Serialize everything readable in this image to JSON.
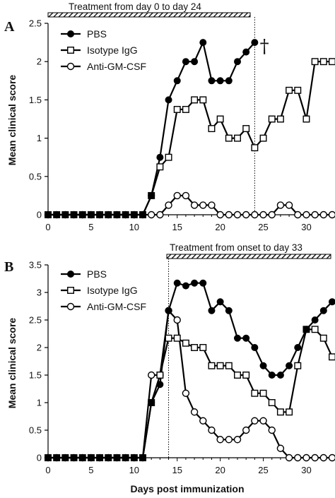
{
  "xlabel": "Days post immunization",
  "chart_data": [
    {
      "type": "line",
      "panel": "A",
      "treatment_label": "Treatment from day 0 to day 24",
      "treatment_range": [
        0,
        24
      ],
      "ylabel": "Mean clinical score",
      "xlim": [
        0,
        33
      ],
      "ylim": [
        0,
        2.5
      ],
      "xticks": [
        0,
        5,
        10,
        15,
        20,
        25,
        30
      ],
      "yticks": [
        0,
        0.5,
        1,
        1.5,
        2,
        2.5
      ],
      "ytick_labels": [
        "0",
        "0.5",
        "1",
        "1.5",
        "2",
        "2.5"
      ],
      "legend_position": "top-left",
      "death_marker": "†",
      "death_marker_at": [
        24.8,
        2.25
      ],
      "series": [
        {
          "name": "PBS",
          "marker": "filled-circle",
          "x": [
            0,
            1,
            2,
            3,
            4,
            5,
            6,
            7,
            8,
            9,
            10,
            11,
            12,
            13,
            14,
            15,
            16,
            17,
            18,
            19,
            20,
            21,
            22,
            23,
            24
          ],
          "y": [
            0,
            0,
            0,
            0,
            0,
            0,
            0,
            0,
            0,
            0,
            0,
            0,
            0.25,
            0.75,
            1.5,
            1.75,
            2,
            2,
            2.25,
            1.75,
            1.75,
            1.75,
            2,
            2.125,
            2.25
          ]
        },
        {
          "name": "Isotype IgG",
          "marker": "open-square",
          "x": [
            0,
            1,
            2,
            3,
            4,
            5,
            6,
            7,
            8,
            9,
            10,
            11,
            12,
            13,
            14,
            15,
            16,
            17,
            18,
            19,
            20,
            21,
            22,
            23,
            24,
            25,
            26,
            27,
            28,
            29,
            30,
            31,
            32,
            33
          ],
          "y": [
            0,
            0,
            0,
            0,
            0,
            0,
            0,
            0,
            0,
            0,
            0,
            0,
            0.25,
            0.625,
            0.75,
            1.375,
            1.375,
            1.5,
            1.5,
            1.125,
            1.25,
            1,
            1,
            1.125,
            0.875,
            1,
            1.25,
            1.25,
            1.625,
            1.625,
            1.25,
            2,
            2,
            2
          ]
        },
        {
          "name": "Anti-GM-CSF",
          "marker": "open-circle",
          "x": [
            0,
            1,
            2,
            3,
            4,
            5,
            6,
            7,
            8,
            9,
            10,
            11,
            12,
            13,
            14,
            15,
            16,
            17,
            18,
            19,
            20,
            21,
            22,
            23,
            24,
            25,
            26,
            27,
            28,
            29,
            30,
            31,
            32,
            33
          ],
          "y": [
            0,
            0,
            0,
            0,
            0,
            0,
            0,
            0,
            0,
            0,
            0,
            0,
            0,
            0,
            0.125,
            0.25,
            0.25,
            0.125,
            0.125,
            0.125,
            0,
            0,
            0,
            0,
            0,
            0,
            0,
            0.125,
            0.125,
            0,
            0,
            0,
            0,
            0
          ]
        }
      ]
    },
    {
      "type": "line",
      "panel": "B",
      "treatment_label": "Treatment from onset to day 33",
      "treatment_range": [
        14,
        33
      ],
      "ylabel": "Mean clinical score",
      "xlim": [
        0,
        33
      ],
      "ylim": [
        0,
        3.5
      ],
      "xticks": [
        0,
        5,
        10,
        15,
        20,
        25,
        30
      ],
      "yticks": [
        0,
        0.5,
        1,
        1.5,
        2,
        2.5,
        3,
        3.5
      ],
      "ytick_labels": [
        "0",
        "0.5",
        "1",
        "1.5",
        "2",
        "2.5",
        "3",
        "3.5"
      ],
      "legend_position": "top-left",
      "series": [
        {
          "name": "PBS",
          "marker": "filled-circle",
          "x": [
            0,
            1,
            2,
            3,
            4,
            5,
            6,
            7,
            8,
            9,
            10,
            11,
            12,
            13,
            14,
            15,
            16,
            17,
            18,
            19,
            20,
            21,
            22,
            23,
            24,
            25,
            26,
            27,
            28,
            29,
            30,
            31,
            32,
            33
          ],
          "y": [
            0,
            0,
            0,
            0,
            0,
            0,
            0,
            0,
            0,
            0,
            0,
            0,
            1,
            1.33,
            2.67,
            3.17,
            3.12,
            3.17,
            3.17,
            2.67,
            2.83,
            2.67,
            2.17,
            2.17,
            2,
            1.67,
            1.5,
            1.5,
            1.67,
            2,
            2.33,
            2.5,
            2.67,
            2.83
          ]
        },
        {
          "name": "Isotype IgG",
          "marker": "open-square",
          "x": [
            0,
            1,
            2,
            3,
            4,
            5,
            6,
            7,
            8,
            9,
            10,
            11,
            12,
            13,
            14,
            15,
            16,
            17,
            18,
            19,
            20,
            21,
            22,
            23,
            24,
            25,
            26,
            27,
            28,
            29,
            30,
            31,
            32,
            33
          ],
          "y": [
            0,
            0,
            0,
            0,
            0,
            0,
            0,
            0,
            0,
            0,
            0,
            0,
            1,
            1.5,
            2.17,
            2.17,
            2.08,
            2,
            2,
            1.67,
            1.67,
            1.67,
            1.5,
            1.5,
            1.17,
            1.17,
            1,
            0.83,
            0.83,
            1.67,
            2.33,
            2.33,
            2.17,
            1.83
          ]
        },
        {
          "name": "Anti-GM-CSF",
          "marker": "open-circle",
          "x": [
            0,
            1,
            2,
            3,
            4,
            5,
            6,
            7,
            8,
            9,
            10,
            11,
            12,
            13,
            14,
            15,
            16,
            17,
            18,
            19,
            20,
            21,
            22,
            23,
            24,
            25,
            26,
            27,
            28,
            29,
            30,
            31,
            32,
            33
          ],
          "y": [
            0,
            0,
            0,
            0,
            0,
            0,
            0,
            0,
            0,
            0,
            0,
            0,
            1.5,
            1.5,
            2.67,
            2.5,
            1.17,
            0.83,
            0.67,
            0.5,
            0.33,
            0.33,
            0.33,
            0.5,
            0.67,
            0.67,
            0.5,
            0.17,
            0,
            0,
            0,
            0,
            0,
            0
          ]
        }
      ]
    }
  ]
}
